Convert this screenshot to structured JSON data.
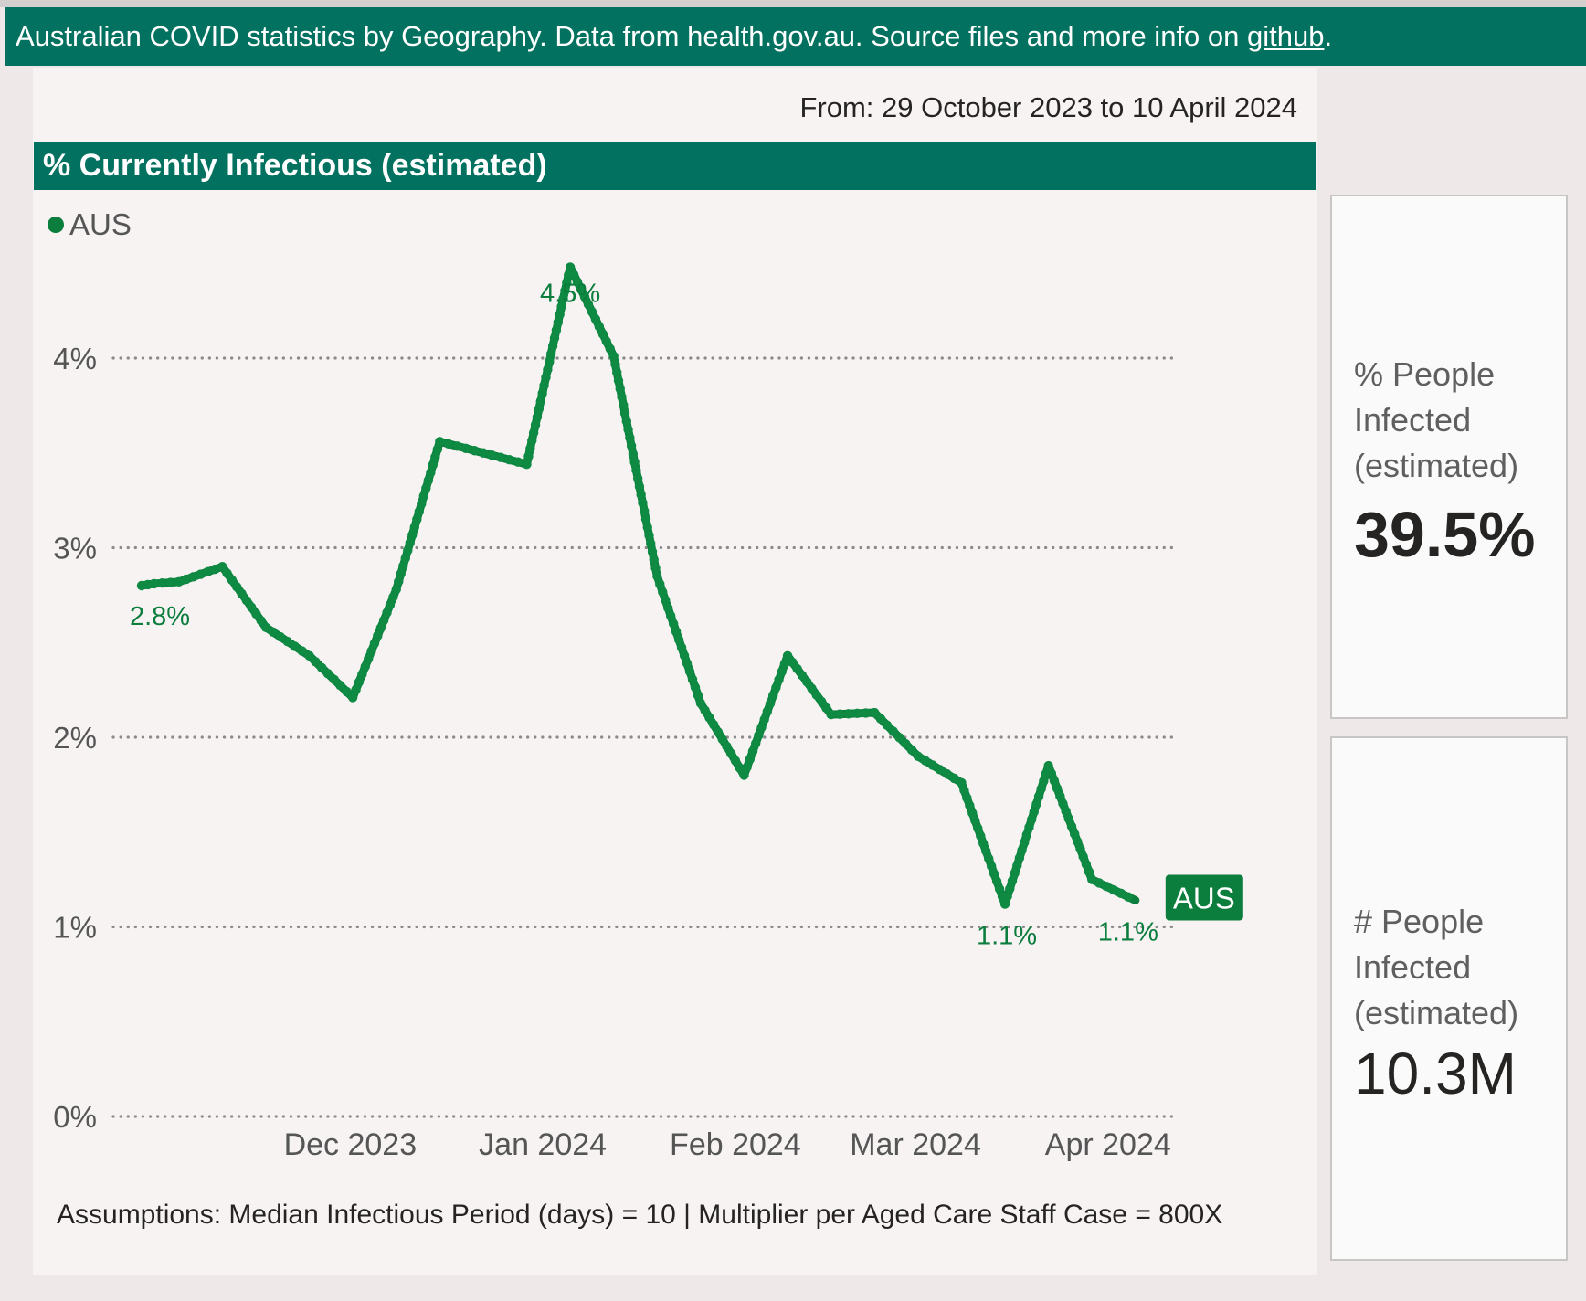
{
  "header": {
    "text_before_link": "Australian COVID statistics by Geography. Data from health.gov.au. Source files and more info on ",
    "link_text": "github",
    "text_after_link": "."
  },
  "date_range": "From: 29 October 2023 to 10 April 2024",
  "chart_title": "% Currently Infectious (estimated)",
  "assumptions": "Assumptions: Median Infectious Period (days) = 10 | Multiplier per Aged Care Staff Case = 800X",
  "kpis": [
    {
      "label": "% People Infected (estimated)",
      "value": "39.5%"
    },
    {
      "label": "# People Infected (estimated)",
      "value": "10.3M"
    }
  ],
  "colors": {
    "header_bg": "#03715f",
    "series": "#0b7d3c",
    "gridline": "#8a8a8a",
    "axis_text": "#555555"
  },
  "chart_data": {
    "type": "line",
    "title": "% Currently Infectious (estimated)",
    "xlabel": "",
    "ylabel": "",
    "ylim": [
      0,
      4.6
    ],
    "grid": true,
    "legend_position": "top-left",
    "y_ticks": [
      0,
      1,
      2,
      3,
      4
    ],
    "y_tick_labels": [
      "0%",
      "1%",
      "2%",
      "3%",
      "4%"
    ],
    "x_range": [
      "2023-10-29",
      "2024-04-10"
    ],
    "x_ticks": [
      {
        "date": "2023-12-01",
        "label": "Dec 2023"
      },
      {
        "date": "2024-01-01",
        "label": "Jan 2024"
      },
      {
        "date": "2024-02-01",
        "label": "Feb 2024"
      },
      {
        "date": "2024-03-01",
        "label": "Mar 2024"
      },
      {
        "date": "2024-04-01",
        "label": "Apr 2024"
      }
    ],
    "series": [
      {
        "name": "AUS",
        "end_label": "AUS",
        "points": [
          {
            "x": "2023-10-29",
            "y": 2.8,
            "label": "2.8%"
          },
          {
            "x": "2023-10-31",
            "y": 2.81
          },
          {
            "x": "2023-11-04",
            "y": 2.82
          },
          {
            "x": "2023-11-11",
            "y": 2.9
          },
          {
            "x": "2023-11-18",
            "y": 2.58
          },
          {
            "x": "2023-11-25",
            "y": 2.43
          },
          {
            "x": "2023-12-02",
            "y": 2.21
          },
          {
            "x": "2023-12-09",
            "y": 2.78
          },
          {
            "x": "2023-12-16",
            "y": 3.56
          },
          {
            "x": "2023-12-23",
            "y": 3.5
          },
          {
            "x": "2023-12-30",
            "y": 3.44
          },
          {
            "x": "2024-01-06",
            "y": 4.48,
            "label": "4.5%"
          },
          {
            "x": "2024-01-13",
            "y": 4.01
          },
          {
            "x": "2024-01-20",
            "y": 2.85
          },
          {
            "x": "2024-01-27",
            "y": 2.18
          },
          {
            "x": "2024-02-03",
            "y": 1.8
          },
          {
            "x": "2024-02-10",
            "y": 2.43
          },
          {
            "x": "2024-02-17",
            "y": 2.12
          },
          {
            "x": "2024-02-24",
            "y": 2.13
          },
          {
            "x": "2024-03-02",
            "y": 1.9
          },
          {
            "x": "2024-03-09",
            "y": 1.76
          },
          {
            "x": "2024-03-16",
            "y": 1.12,
            "label": "1.1%"
          },
          {
            "x": "2024-03-23",
            "y": 1.85
          },
          {
            "x": "2024-03-30",
            "y": 1.25
          },
          {
            "x": "2024-04-06",
            "y": 1.14,
            "label": "1.1%"
          }
        ]
      }
    ]
  }
}
